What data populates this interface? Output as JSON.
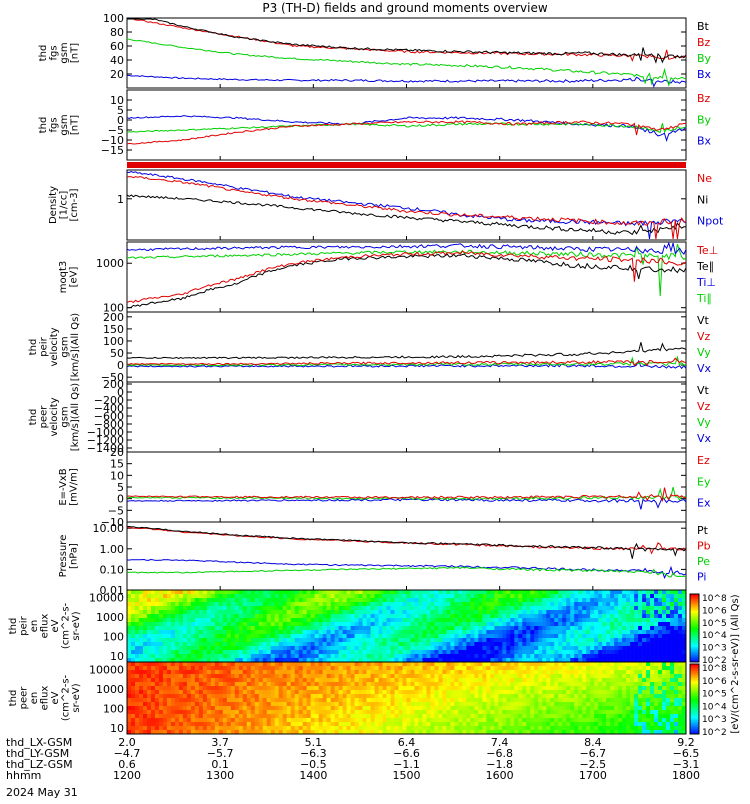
{
  "title": "P3 (TH-D) fields and ground moments overview",
  "date_label": "2024 May 31",
  "orbit_rows": [
    {
      "label": "thd_LX-GSM",
      "values": [
        "2.0",
        "3.7",
        "5.1",
        "6.4",
        "7.4",
        "8.4",
        "9.2"
      ]
    },
    {
      "label": "thd_LY-GSM",
      "values": [
        "-4.7",
        "-5.7",
        "-6.3",
        "-6.6",
        "-6.8",
        "-6.7",
        "-6.5"
      ]
    },
    {
      "label": "thd_LZ-GSM",
      "values": [
        "0.6",
        "0.1",
        "-0.5",
        "-1.1",
        "-1.8",
        "-2.5",
        "-3.1"
      ]
    },
    {
      "label": "hhmm",
      "values": [
        "1200",
        "1300",
        "1400",
        "1500",
        "1600",
        "1700",
        "1800"
      ]
    }
  ],
  "colors": {
    "black": "#000000",
    "red": "#e00000",
    "green": "#00d000",
    "blue": "#0000e0",
    "spike": "#008000"
  },
  "colorbar": {
    "label": "[eV/(cm^2-s-sr-eV)] (All Qs)",
    "top_ticks": [
      "10^8",
      "10^6",
      "10^5",
      "10^4",
      "10^3",
      "10^2"
    ],
    "bottom_ticks": [
      "10^8",
      "10^6",
      "10^5",
      "10^4",
      "10^3",
      "10^2"
    ]
  },
  "chart_data": [
    {
      "type": "line",
      "ylabel": [
        "thd",
        "fgs",
        "gsm",
        "[nT]"
      ],
      "yscale": "linear",
      "ylim": [
        0,
        100
      ],
      "yticks": [
        "100",
        "80",
        "60",
        "40",
        "20"
      ],
      "series": [
        {
          "name": "Bt",
          "color": "black",
          "x": [
            0,
            0.05,
            0.1,
            0.2,
            0.3,
            0.4,
            0.5,
            0.6,
            0.7,
            0.78,
            0.82,
            0.9,
            0.94,
            0.97,
            1.0
          ],
          "y": [
            100,
            98,
            88,
            72,
            62,
            57,
            54,
            52,
            50,
            49,
            50,
            47,
            48,
            45,
            45
          ]
        },
        {
          "name": "Bz",
          "color": "red",
          "x": [
            0,
            0.1,
            0.3,
            0.5,
            0.7,
            0.8,
            0.85,
            0.9,
            0.94,
            0.97,
            1.0
          ],
          "y": [
            100,
            86,
            60,
            52,
            49,
            48,
            47,
            46,
            45,
            43,
            44
          ]
        },
        {
          "name": "By",
          "color": "green",
          "x": [
            0,
            0.1,
            0.2,
            0.3,
            0.4,
            0.5,
            0.6,
            0.7,
            0.8,
            0.9,
            0.97,
            1.0
          ],
          "y": [
            70,
            58,
            48,
            42,
            38,
            34,
            32,
            29,
            24,
            19,
            14,
            13
          ]
        },
        {
          "name": "Bx",
          "color": "blue",
          "x": [
            0,
            0.1,
            0.2,
            0.3,
            0.4,
            0.5,
            0.6,
            0.7,
            0.8,
            0.9,
            0.97,
            1.0
          ],
          "y": [
            18,
            14,
            12,
            11,
            11,
            10,
            10,
            10,
            10,
            12,
            9,
            8
          ]
        }
      ]
    },
    {
      "type": "line",
      "ylabel": [
        "thd",
        "fgs",
        "gsm",
        "[nT]"
      ],
      "yscale": "linear",
      "ylim": [
        -20,
        15
      ],
      "yticks": [
        "10",
        "5",
        "0",
        "-5",
        "-10",
        "-15"
      ],
      "series": [
        {
          "name": "Bz",
          "color": "red",
          "x": [
            0,
            0.1,
            0.2,
            0.3,
            0.4,
            0.5,
            0.6,
            0.7,
            0.8,
            0.9,
            0.95,
            1.0
          ],
          "y": [
            -12,
            -10,
            -6,
            -3,
            -2,
            -1,
            -1,
            -2,
            -1,
            -2,
            -5,
            -2
          ]
        },
        {
          "name": "By",
          "color": "green",
          "x": [
            0,
            0.1,
            0.2,
            0.3,
            0.4,
            0.5,
            0.6,
            0.7,
            0.8,
            0.9,
            0.95,
            1.0
          ],
          "y": [
            -6,
            -5,
            -4,
            -3,
            -2,
            -3,
            -2,
            -2,
            -2,
            -3,
            -6,
            -3
          ]
        },
        {
          "name": "Bx",
          "color": "blue",
          "x": [
            0,
            0.1,
            0.2,
            0.3,
            0.4,
            0.5,
            0.6,
            0.7,
            0.8,
            0.9,
            0.95,
            1.0
          ],
          "y": [
            1,
            2,
            1,
            -1,
            -2,
            1,
            1,
            0,
            -2,
            -3,
            -8,
            -4
          ]
        }
      ]
    },
    {
      "type": "line",
      "ylabel": [
        "Density",
        "[1/cc]",
        "[cm-3]"
      ],
      "yscale": "log",
      "ylim": [
        0.1,
        5
      ],
      "yticks": [
        "1"
      ],
      "series": [
        {
          "name": "Ne",
          "color": "red",
          "x": [
            0,
            0.1,
            0.2,
            0.3,
            0.4,
            0.5,
            0.6,
            0.7,
            0.8,
            0.9,
            1.0
          ],
          "y": [
            3.5,
            2.5,
            1.5,
            1.0,
            0.7,
            0.5,
            0.4,
            0.35,
            0.3,
            0.25,
            0.3
          ]
        },
        {
          "name": "Ni",
          "color": "black",
          "x": [
            0,
            0.1,
            0.2,
            0.3,
            0.4,
            0.5,
            0.6,
            0.7,
            0.8,
            0.9,
            1.0
          ],
          "y": [
            1.2,
            1.0,
            0.8,
            0.6,
            0.45,
            0.35,
            0.28,
            0.22,
            0.18,
            0.15,
            0.2
          ]
        },
        {
          "name": "Npot",
          "color": "blue",
          "x": [
            0,
            0.1,
            0.2,
            0.3,
            0.4,
            0.5,
            0.6,
            0.7,
            0.8,
            0.9,
            1.0
          ],
          "y": [
            4.5,
            3,
            1.8,
            1.1,
            0.8,
            0.6,
            0.4,
            0.3,
            0.28,
            0.25,
            0.3
          ]
        }
      ]
    },
    {
      "type": "line",
      "ylabel": [
        "moqt3",
        "[eV]"
      ],
      "yscale": "log",
      "ylim": [
        80,
        3000
      ],
      "yticks": [
        "1000",
        "100"
      ],
      "series": [
        {
          "name": "Te⊥",
          "color": "red",
          "x": [
            0,
            0.1,
            0.2,
            0.3,
            0.4,
            0.5,
            0.6,
            0.7,
            0.8,
            0.9,
            1.0
          ],
          "y": [
            130,
            200,
            450,
            1000,
            1400,
            1600,
            1700,
            1500,
            1300,
            1200,
            1000
          ]
        },
        {
          "name": "Te∥",
          "color": "black",
          "x": [
            0,
            0.1,
            0.2,
            0.3,
            0.4,
            0.5,
            0.6,
            0.7,
            0.8,
            0.9,
            1.0
          ],
          "y": [
            100,
            160,
            350,
            900,
            1300,
            1400,
            1500,
            1200,
            900,
            800,
            700
          ]
        },
        {
          "name": "Ti⊥",
          "color": "blue",
          "x": [
            0,
            0.1,
            0.2,
            0.3,
            0.4,
            0.5,
            0.6,
            0.7,
            0.8,
            0.9,
            1.0
          ],
          "y": [
            2000,
            2100,
            2200,
            2300,
            2300,
            2400,
            2500,
            2300,
            2100,
            2000,
            1900
          ]
        },
        {
          "name": "Ti∥",
          "color": "green",
          "x": [
            0,
            0.1,
            0.2,
            0.3,
            0.4,
            0.5,
            0.6,
            0.7,
            0.8,
            0.9,
            1.0
          ],
          "y": [
            1300,
            1400,
            1500,
            1600,
            1700,
            1800,
            1800,
            1700,
            1600,
            1500,
            1400
          ]
        }
      ]
    },
    {
      "type": "line",
      "ylabel": [
        "thd",
        "peir",
        "velocity",
        "gsm",
        "[km/s](All Qs)"
      ],
      "yscale": "linear",
      "ylim": [
        -70,
        220
      ],
      "yticks": [
        "200",
        "150",
        "100",
        "50",
        "0",
        "-50"
      ],
      "series": [
        {
          "name": "Vt",
          "color": "black",
          "x": [
            0,
            0.2,
            0.4,
            0.6,
            0.8,
            0.9,
            1.0
          ],
          "y": [
            30,
            30,
            32,
            35,
            45,
            55,
            70
          ]
        },
        {
          "name": "Vz",
          "color": "red",
          "x": [
            0,
            0.2,
            0.4,
            0.6,
            0.8,
            1.0
          ],
          "y": [
            5,
            5,
            8,
            10,
            12,
            15
          ]
        },
        {
          "name": "Vy",
          "color": "green",
          "x": [
            0,
            0.2,
            0.4,
            0.6,
            0.8,
            1.0
          ],
          "y": [
            0,
            0,
            2,
            3,
            4,
            5
          ]
        },
        {
          "name": "Vx",
          "color": "blue",
          "x": [
            0,
            0.2,
            0.4,
            0.6,
            0.8,
            1.0
          ],
          "y": [
            -5,
            -5,
            -4,
            -3,
            -2,
            -8
          ]
        }
      ]
    },
    {
      "type": "line",
      "ylabel": [
        "thd",
        "peer",
        "velocity",
        "gsm",
        "[km/s](All Qs)"
      ],
      "yscale": "linear",
      "ylim": [
        -1500,
        250
      ],
      "yticks": [
        "200",
        "0",
        "-200",
        "-400",
        "-600",
        "-800",
        "-1000",
        "-1200",
        "-1400"
      ],
      "series": [
        {
          "name": "Vt",
          "color": "black",
          "x": [],
          "y": []
        },
        {
          "name": "Vz",
          "color": "red",
          "x": [],
          "y": []
        },
        {
          "name": "Vy",
          "color": "green",
          "x": [],
          "y": []
        },
        {
          "name": "Vx",
          "color": "blue",
          "x": [],
          "y": []
        }
      ]
    },
    {
      "type": "line",
      "ylabel": [
        "E=-VxB",
        "[mV/m]"
      ],
      "yscale": "linear",
      "ylim": [
        -10,
        20
      ],
      "yticks": [
        "20",
        "15",
        "10",
        "5",
        "0",
        "-5",
        "-10"
      ],
      "series": [
        {
          "name": "Ez",
          "color": "red",
          "x": [
            0,
            0.5,
            1.0
          ],
          "y": [
            1,
            0.5,
            1
          ]
        },
        {
          "name": "Ey",
          "color": "green",
          "x": [
            0,
            0.5,
            1.0
          ],
          "y": [
            0.5,
            0,
            0.5
          ]
        },
        {
          "name": "Ex",
          "color": "blue",
          "x": [
            0,
            0.5,
            1.0
          ],
          "y": [
            -1,
            -0.5,
            -1
          ]
        }
      ]
    },
    {
      "type": "line",
      "ylabel": [
        "Pressure",
        "[nPa]"
      ],
      "yscale": "log",
      "ylim": [
        0.01,
        20
      ],
      "yticks": [
        "10.00",
        "1.00",
        "0.10",
        "0.01"
      ],
      "series": [
        {
          "name": "Pt",
          "color": "black",
          "x": [
            0,
            0.1,
            0.2,
            0.3,
            0.4,
            0.5,
            0.6,
            0.7,
            0.8,
            0.9,
            1.0
          ],
          "y": [
            12,
            7,
            4.5,
            3.2,
            2.5,
            2,
            1.7,
            1.4,
            1.2,
            1.0,
            0.9
          ]
        },
        {
          "name": "Pb",
          "color": "red",
          "x": [
            0,
            0.1,
            0.2,
            0.3,
            0.4,
            0.5,
            0.6,
            0.7,
            0.8,
            0.9,
            1.0
          ],
          "y": [
            11,
            6.5,
            4.2,
            3,
            2.4,
            1.9,
            1.6,
            1.3,
            1.1,
            1.0,
            0.95
          ]
        },
        {
          "name": "Pe",
          "color": "green",
          "x": [
            0,
            0.1,
            0.2,
            0.3,
            0.4,
            0.5,
            0.6,
            0.7,
            0.8,
            0.9,
            1.0
          ],
          "y": [
            0.07,
            0.07,
            0.08,
            0.09,
            0.1,
            0.11,
            0.12,
            0.1,
            0.09,
            0.08,
            0.04
          ]
        },
        {
          "name": "Pi",
          "color": "blue",
          "x": [
            0,
            0.1,
            0.2,
            0.3,
            0.4,
            0.5,
            0.6,
            0.7,
            0.8,
            0.9,
            1.0
          ],
          "y": [
            0.3,
            0.28,
            0.22,
            0.18,
            0.16,
            0.15,
            0.14,
            0.12,
            0.1,
            0.09,
            0.06
          ]
        }
      ]
    },
    {
      "type": "heatmap",
      "ylabel": [
        "thd",
        "peir",
        "en",
        "eflux",
        "eV",
        "(cm^2-s-",
        "sr-eV)"
      ],
      "yscale": "log",
      "ylim": [
        5,
        25000
      ],
      "yticks": [
        "10000",
        "1000",
        "100",
        "10"
      ]
    },
    {
      "type": "heatmap",
      "ylabel": [
        "thd",
        "peer",
        "en",
        "eflux",
        "eV",
        "(cm^2-s-",
        "sr-eV)"
      ],
      "yscale": "log",
      "ylim": [
        5,
        25000
      ],
      "yticks": [
        "10000",
        "1000",
        "100",
        "10"
      ]
    }
  ]
}
